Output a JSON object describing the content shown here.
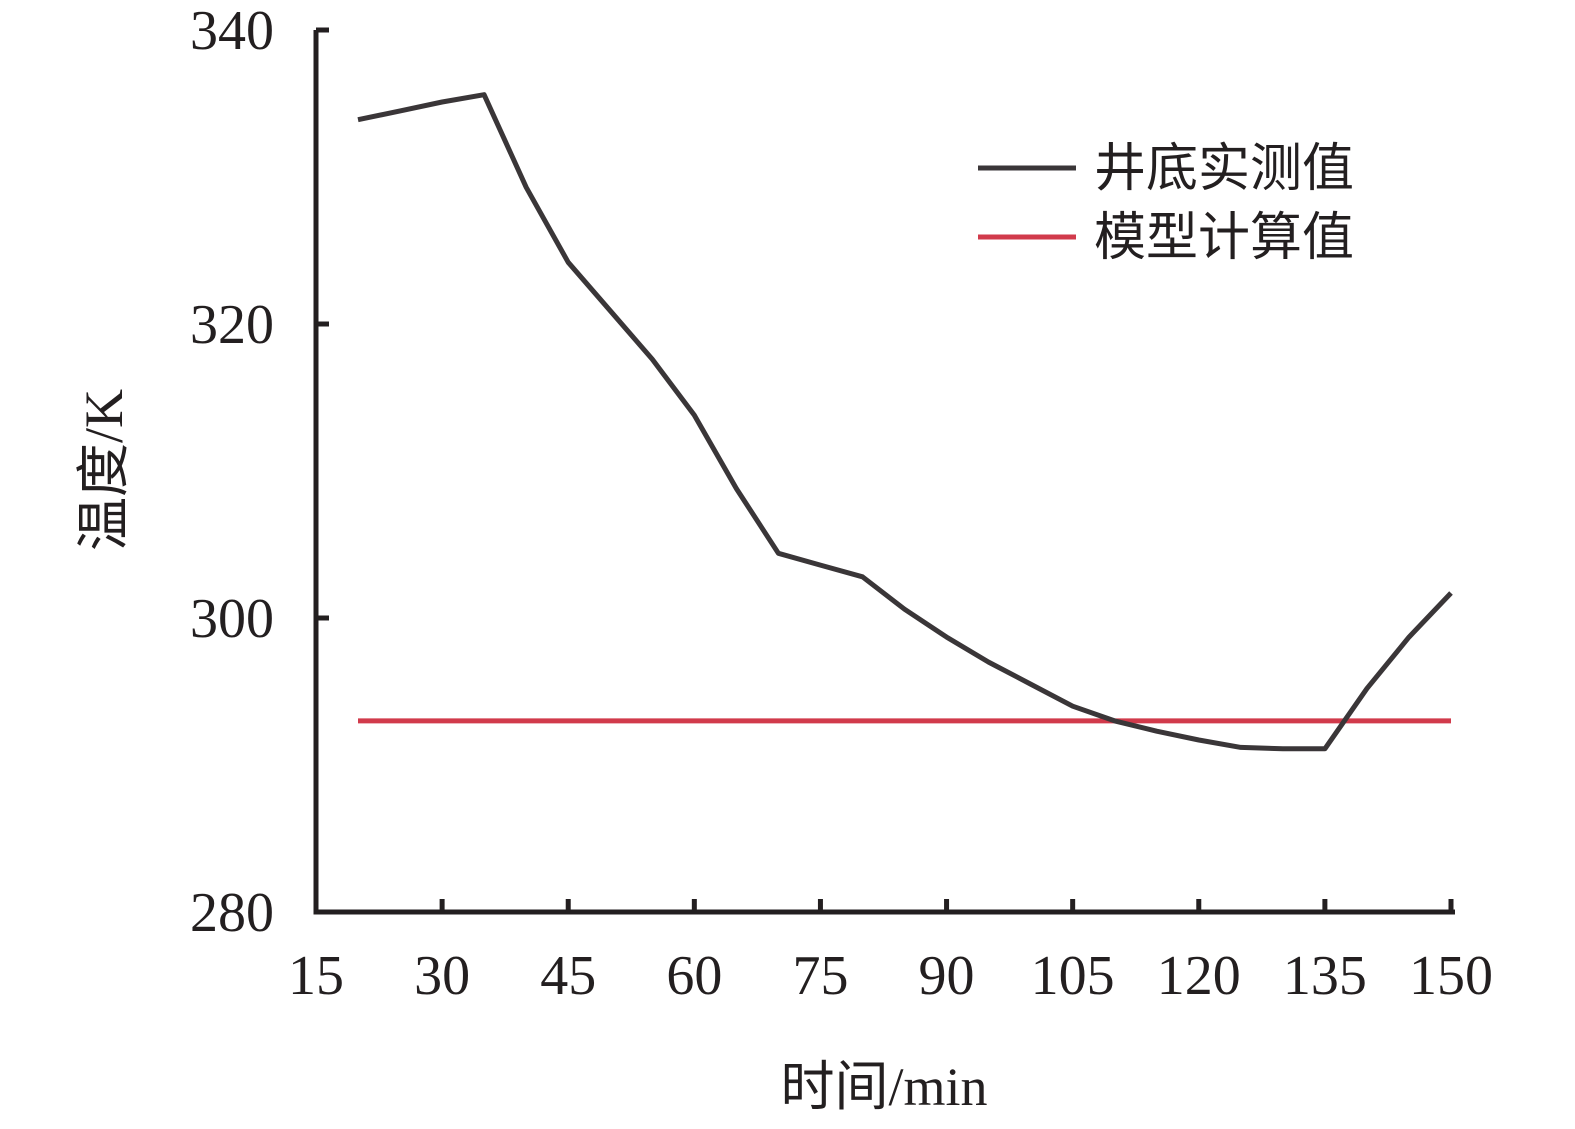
{
  "chart_data": {
    "type": "line",
    "xlabel": "时间/min",
    "ylabel": "温度/K",
    "xlim": [
      15,
      150
    ],
    "ylim": [
      280,
      340
    ],
    "x_ticks": [
      "15",
      "30",
      "45",
      "60",
      "75",
      "90",
      "105",
      "120",
      "135",
      "150"
    ],
    "y_ticks": [
      "280",
      "300",
      "320",
      "340"
    ],
    "grid": false,
    "legend_position": "top-right",
    "series": [
      {
        "name": "井底实测值",
        "color": "#3a3638",
        "x": [
          20,
          25,
          30,
          35,
          40,
          45,
          50,
          55,
          60,
          65,
          70,
          75,
          80,
          85,
          90,
          95,
          100,
          105,
          110,
          115,
          120,
          125,
          130,
          135,
          140,
          145,
          150
        ],
        "y": [
          333.9,
          334.5,
          335.1,
          335.6,
          329.3,
          324.2,
          320.9,
          317.6,
          313.8,
          308.8,
          304.4,
          303.6,
          302.8,
          300.6,
          298.7,
          297.0,
          295.5,
          294.0,
          293.0,
          292.3,
          291.7,
          291.2,
          291.1,
          291.1,
          295.2,
          298.7,
          301.7
        ]
      },
      {
        "name": "模型计算值",
        "color": "#d13a4b",
        "x": [
          20,
          150
        ],
        "y": [
          293.0,
          293.0
        ]
      }
    ]
  }
}
